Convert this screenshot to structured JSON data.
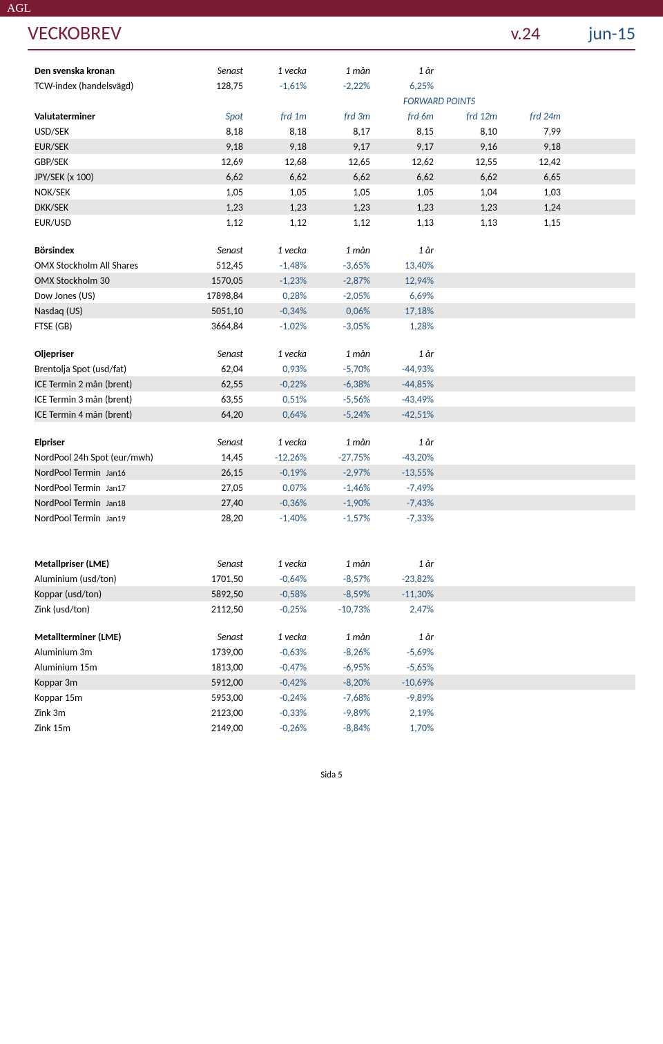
{
  "brand": "AGL",
  "header": {
    "title": "VECKOBREV",
    "week": "v.24",
    "month": "jun-15"
  },
  "page_label": "Sida 5",
  "krona": {
    "title": "Den svenska kronan",
    "cols": [
      "Senast",
      "1 vecka",
      "1 mån",
      "1 år"
    ],
    "tcw": {
      "label": "TCW-index (handelsvägd)",
      "v": [
        "128,75",
        "-1,61%",
        "-2,22%",
        "6,25%"
      ]
    },
    "fp": "FORWARD POINTS",
    "valutaterminer": {
      "label": "Valutaterminer",
      "cols": [
        "Spot",
        "frd 1m",
        "frd 3m",
        "frd 6m",
        "frd 12m",
        "frd 24m"
      ]
    },
    "rows": [
      {
        "label": "USD/SEK",
        "v": [
          "8,18",
          "8,18",
          "8,17",
          "8,15",
          "8,10",
          "7,99"
        ],
        "s": false
      },
      {
        "label": "EUR/SEK",
        "v": [
          "9,18",
          "9,18",
          "9,17",
          "9,17",
          "9,16",
          "9,18"
        ],
        "s": true
      },
      {
        "label": "GBP/SEK",
        "v": [
          "12,69",
          "12,68",
          "12,65",
          "12,62",
          "12,55",
          "12,42"
        ],
        "s": false
      },
      {
        "label": "JPY/SEK (x 100)",
        "v": [
          "6,62",
          "6,62",
          "6,62",
          "6,62",
          "6,62",
          "6,65"
        ],
        "s": true
      },
      {
        "label": "NOK/SEK",
        "v": [
          "1,05",
          "1,05",
          "1,05",
          "1,05",
          "1,04",
          "1,03"
        ],
        "s": false
      },
      {
        "label": "DKK/SEK",
        "v": [
          "1,23",
          "1,23",
          "1,23",
          "1,23",
          "1,23",
          "1,24"
        ],
        "s": true
      },
      {
        "label": "EUR/USD",
        "v": [
          "1,12",
          "1,12",
          "1,12",
          "1,13",
          "1,13",
          "1,15"
        ],
        "s": false
      }
    ]
  },
  "sections": [
    {
      "title": "Börsindex",
      "cols": [
        "Senast",
        "1 vecka",
        "1 mån",
        "1 år"
      ],
      "rows": [
        {
          "label": "OMX Stockholm All Shares",
          "v": [
            "512,45",
            "-1,48%",
            "-3,65%",
            "13,40%"
          ],
          "s": false
        },
        {
          "label": "OMX Stockholm 30",
          "v": [
            "1570,05",
            "-1,23%",
            "-2,87%",
            "12,94%"
          ],
          "s": true
        },
        {
          "label": "Dow Jones (US)",
          "v": [
            "17898,84",
            "0,28%",
            "-2,05%",
            "6,69%"
          ],
          "s": false
        },
        {
          "label": "Nasdaq (US)",
          "v": [
            "5051,10",
            "-0,34%",
            "0,06%",
            "17,18%"
          ],
          "s": true
        },
        {
          "label": "FTSE (GB)",
          "v": [
            "3664,84",
            "-1,02%",
            "-3,05%",
            "1,28%"
          ],
          "s": false
        }
      ]
    },
    {
      "title": "Oljepriser",
      "cols": [
        "Senast",
        "1 vecka",
        "1 mån",
        "1 år"
      ],
      "rows": [
        {
          "label": "Brentolja Spot (usd/fat)",
          "v": [
            "62,04",
            "0,93%",
            "-5,70%",
            "-44,93%"
          ],
          "s": false
        },
        {
          "label": "ICE Termin 2 mån (brent)",
          "v": [
            "62,55",
            "-0,22%",
            "-6,38%",
            "-44,85%"
          ],
          "s": true
        },
        {
          "label": "ICE Termin 3 mån (brent)",
          "v": [
            "63,55",
            "0,51%",
            "-5,56%",
            "-43,49%"
          ],
          "s": false
        },
        {
          "label": "ICE Termin 4 mån (brent)",
          "v": [
            "64,20",
            "0,64%",
            "-5,24%",
            "-42,51%"
          ],
          "s": true
        }
      ]
    },
    {
      "title": "Elpriser",
      "cols": [
        "Senast",
        "1 vecka",
        "1 mån",
        "1 år"
      ],
      "rows": [
        {
          "label": "NordPool 24h Spot (eur/mwh)",
          "v": [
            "14,45",
            "-12,26%",
            "-27,75%",
            "-43,20%"
          ],
          "s": false
        },
        {
          "label": "NordPool Termin",
          "sub": "Jan16",
          "v": [
            "26,15",
            "-0,19%",
            "-2,97%",
            "-13,55%"
          ],
          "s": true
        },
        {
          "label": "NordPool Termin",
          "sub": "Jan17",
          "v": [
            "27,05",
            "0,07%",
            "-1,46%",
            "-7,49%"
          ],
          "s": false
        },
        {
          "label": "NordPool Termin",
          "sub": "Jan18",
          "v": [
            "27,40",
            "-0,36%",
            "-1,90%",
            "-7,43%"
          ],
          "s": true
        },
        {
          "label": "NordPool Termin",
          "sub": "Jan19",
          "v": [
            "28,20",
            "-1,40%",
            "-1,57%",
            "-7,33%"
          ],
          "s": false
        }
      ]
    },
    {
      "title": "Metallpriser (LME)",
      "cols": [
        "Senast",
        "1 vecka",
        "1 mån",
        "1 år"
      ],
      "rows": [
        {
          "label": "Aluminium (usd/ton)",
          "v": [
            "1701,50",
            "-0,64%",
            "-8,57%",
            "-23,82%"
          ],
          "s": false
        },
        {
          "label": "Koppar (usd/ton)",
          "v": [
            "5892,50",
            "-0,58%",
            "-8,59%",
            "-11,30%"
          ],
          "s": true
        },
        {
          "label": "Zink (usd/ton)",
          "v": [
            "2112,50",
            "-0,25%",
            "-10,73%",
            "2,47%"
          ],
          "s": false
        }
      ]
    },
    {
      "title": "Metallterminer (LME)",
      "cols": [
        "Senast",
        "1 vecka",
        "1 mån",
        "1 år"
      ],
      "rows": [
        {
          "label": "Aluminium 3m",
          "v": [
            "1739,00",
            "-0,63%",
            "-8,26%",
            "-5,69%"
          ],
          "s": false
        },
        {
          "label": "Aluminium 15m",
          "v": [
            "1813,00",
            "-0,47%",
            "-6,95%",
            "-5,65%"
          ],
          "s": false
        },
        {
          "label": "Koppar 3m",
          "v": [
            "5912,00",
            "-0,42%",
            "-8,20%",
            "-10,69%"
          ],
          "s": true
        },
        {
          "label": "Koppar 15m",
          "v": [
            "5953,00",
            "-0,24%",
            "-7,68%",
            "-9,89%"
          ],
          "s": false
        },
        {
          "label": "Zink 3m",
          "v": [
            "2123,00",
            "-0,33%",
            "-9,89%",
            "2,19%"
          ],
          "s": false
        },
        {
          "label": "Zink 15m",
          "v": [
            "2149,00",
            "-0,26%",
            "-8,84%",
            "1,70%"
          ],
          "s": false
        }
      ]
    }
  ]
}
